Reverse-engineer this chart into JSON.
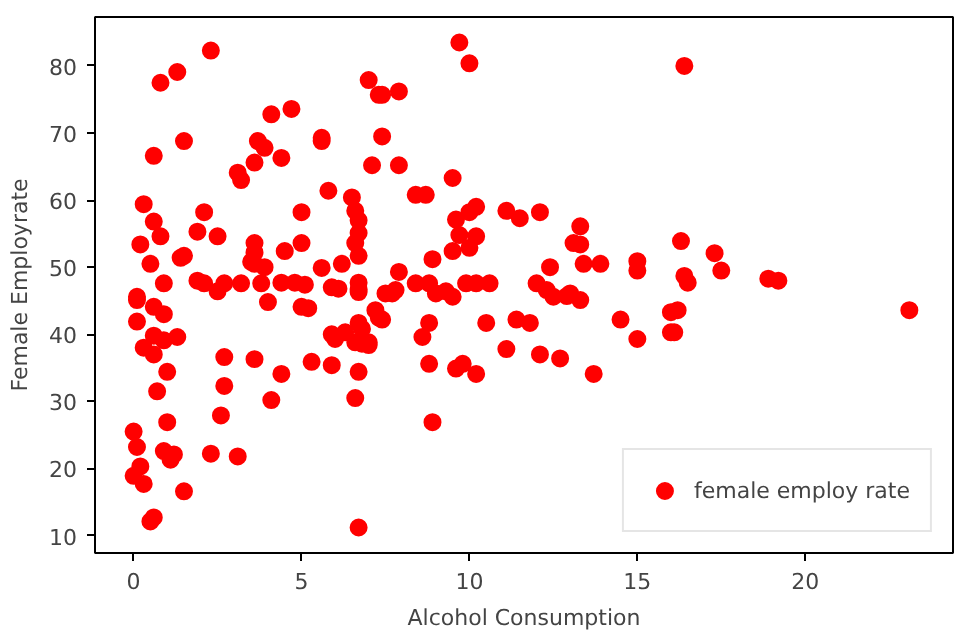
{
  "chart_data": {
    "type": "scatter",
    "xlabel": "Alcohol Consumption",
    "ylabel": "Female Employrate",
    "legend": "bottom right",
    "grid": false,
    "marker": "circle",
    "xlim": [
      -1.15,
      24.4
    ],
    "ylim": [
      7.4,
      87.3
    ],
    "xticks": [
      0,
      5,
      10,
      15,
      20
    ],
    "yticks": [
      10,
      20,
      30,
      40,
      50,
      60,
      70,
      80
    ],
    "series": [
      {
        "name": "female employ rate",
        "color": "#ff0000",
        "x": [
          2.3,
          0.8,
          1.3,
          4.1,
          4.7,
          1.5,
          0.6,
          3.7,
          3.9,
          4.4,
          3.6,
          3.1,
          3.2,
          5.6,
          5.6,
          5.8,
          7.0,
          7.3,
          7.4,
          7.1,
          0.3,
          0.6,
          0.8,
          2.1,
          1.9,
          2.5,
          0.2,
          0.5,
          5.0,
          3.6,
          5.0,
          4.5,
          1.4,
          1.5,
          3.6,
          3.6,
          3.5,
          6.5,
          6.6,
          6.7,
          6.7,
          6.6,
          6.7,
          5.6,
          6.2,
          3.9,
          0.9,
          1.9,
          2.1,
          2.7,
          3.2,
          3.8,
          4.4,
          4.8,
          5.1,
          5.9,
          6.7,
          6.7,
          0.1,
          7.5,
          0.1,
          0.1,
          0.6,
          0.9,
          0.6,
          0.9,
          0.3,
          0.6,
          1.3,
          1.0,
          0.7,
          2.7,
          3.6,
          4.4,
          2.7,
          4.1,
          2.6,
          1.0,
          0.0,
          0.1,
          0.9,
          1.2,
          1.1,
          2.3,
          3.1,
          0.2,
          0.0,
          0.3,
          1.5,
          0.5,
          0.6,
          6.7,
          5.3,
          5.9,
          6.6,
          6.7,
          5.9,
          6.0,
          6.3,
          6.6,
          6.8,
          7.0,
          6.7,
          6.8,
          7.2,
          7.4,
          5.0,
          5.2,
          4.0,
          2.5,
          6.1,
          6.7,
          9.7,
          10.0,
          7.4,
          7.9,
          7.9,
          9.5,
          8.4,
          8.7,
          10.2,
          10.0,
          9.6,
          11.1,
          11.5,
          12.1,
          13.3,
          13.1,
          13.3,
          9.7,
          10.2,
          10.0,
          9.5,
          8.9,
          7.9,
          12.4,
          13.4,
          13.9,
          15.0,
          15.0,
          7.8,
          8.4,
          8.8,
          9.3,
          9.9,
          10.2,
          10.6,
          12.0,
          12.3,
          13.0,
          7.3,
          7.0,
          7.7,
          9.0,
          9.5,
          12.5,
          12.9,
          13.3,
          8.8,
          8.6,
          10.5,
          11.4,
          11.8,
          11.1,
          12.1,
          12.7,
          8.8,
          9.6,
          9.8,
          10.2,
          13.7,
          14.5,
          15.0,
          16.0,
          16.0,
          8.9,
          16.3,
          17.3,
          17.5,
          16.4,
          16.5,
          18.9,
          19.2,
          16.2,
          16.1,
          23.1,
          16.4
        ],
        "values": [
          82.3,
          77.5,
          79.1,
          72.8,
          73.6,
          68.8,
          66.6,
          68.8,
          67.8,
          66.3,
          65.6,
          64.1,
          63.0,
          69.3,
          68.8,
          61.4,
          77.9,
          75.7,
          69.5,
          65.2,
          59.4,
          56.8,
          54.6,
          58.2,
          55.3,
          54.6,
          53.4,
          50.5,
          58.2,
          53.6,
          53.6,
          52.4,
          51.4,
          51.7,
          52.2,
          50.5,
          50.8,
          60.4,
          58.4,
          57.0,
          55.1,
          53.6,
          51.7,
          49.9,
          50.5,
          50.0,
          47.6,
          48.0,
          47.6,
          47.6,
          47.6,
          47.6,
          47.7,
          47.7,
          47.4,
          47.0,
          47.7,
          46.3,
          45.6,
          46.1,
          45.1,
          41.9,
          44.1,
          43.0,
          39.8,
          39.1,
          38.0,
          37.0,
          39.6,
          34.4,
          31.5,
          36.6,
          36.3,
          34.1,
          32.3,
          30.2,
          27.9,
          26.9,
          25.5,
          23.2,
          22.6,
          22.1,
          21.3,
          22.2,
          21.8,
          20.3,
          18.9,
          17.7,
          16.6,
          12.1,
          12.7,
          11.2,
          35.9,
          35.4,
          30.5,
          34.4,
          40.0,
          39.3,
          40.3,
          38.8,
          38.6,
          38.4,
          41.7,
          40.8,
          43.6,
          42.2,
          44.1,
          43.9,
          44.8,
          46.4,
          46.8,
          46.7,
          83.5,
          80.4,
          75.7,
          76.2,
          65.2,
          63.3,
          60.8,
          60.8,
          59.0,
          58.2,
          57.1,
          58.4,
          57.3,
          58.2,
          56.1,
          53.6,
          53.4,
          54.8,
          54.6,
          52.9,
          52.4,
          51.2,
          49.3,
          50.0,
          50.5,
          50.5,
          50.9,
          49.5,
          46.6,
          47.6,
          47.6,
          46.4,
          47.6,
          47.6,
          47.6,
          47.6,
          46.6,
          46.1,
          42.5,
          38.8,
          46.1,
          46.1,
          45.6,
          45.6,
          45.7,
          45.1,
          41.7,
          39.6,
          41.7,
          42.2,
          41.7,
          37.8,
          37.0,
          36.4,
          35.6,
          34.9,
          35.6,
          34.1,
          34.1,
          42.2,
          39.3,
          40.3,
          43.3,
          26.9,
          53.9,
          52.1,
          49.5,
          48.7,
          47.7,
          48.3,
          48.0,
          43.6,
          40.3,
          43.6,
          80.0
        ]
      }
    ]
  }
}
